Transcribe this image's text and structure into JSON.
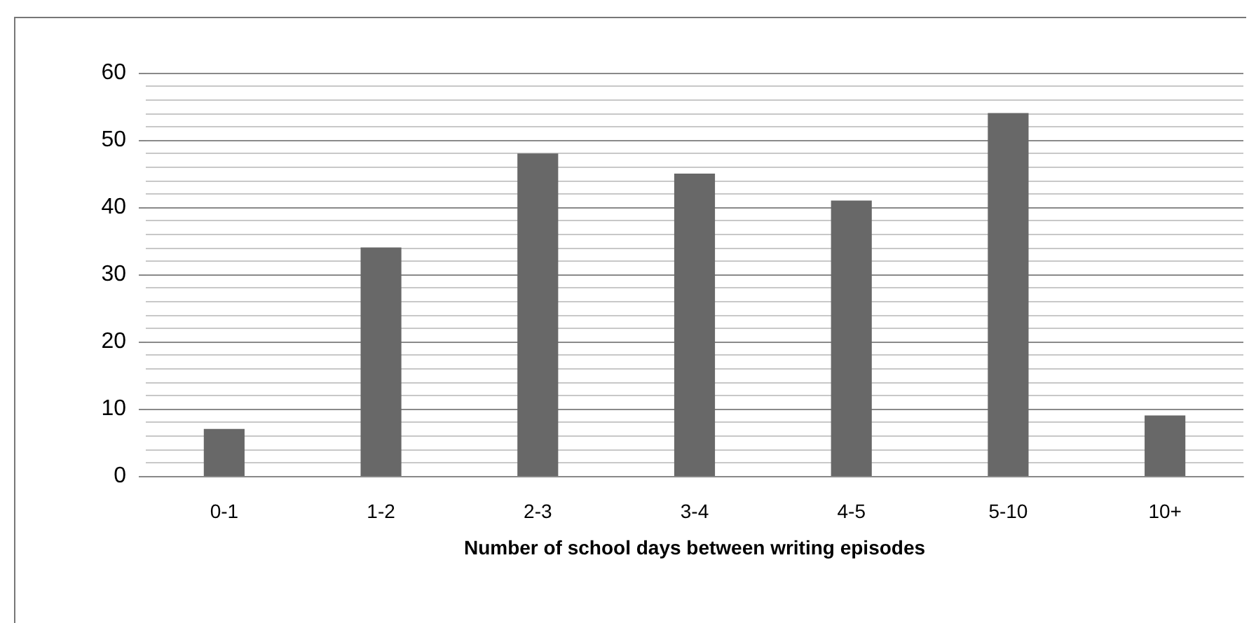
{
  "chart_data": {
    "type": "bar",
    "categories": [
      "0-1",
      "1-2",
      "2-3",
      "3-4",
      "4-5",
      "5-10",
      "10+"
    ],
    "values": [
      7,
      34,
      48,
      45,
      41,
      54,
      9
    ],
    "color": "#686868",
    "xlabel": "Number of school days between writing episodes",
    "ylim": [
      0,
      60
    ],
    "yticks": [
      0,
      10,
      20,
      30,
      40,
      50,
      60
    ],
    "grid": "y"
  }
}
